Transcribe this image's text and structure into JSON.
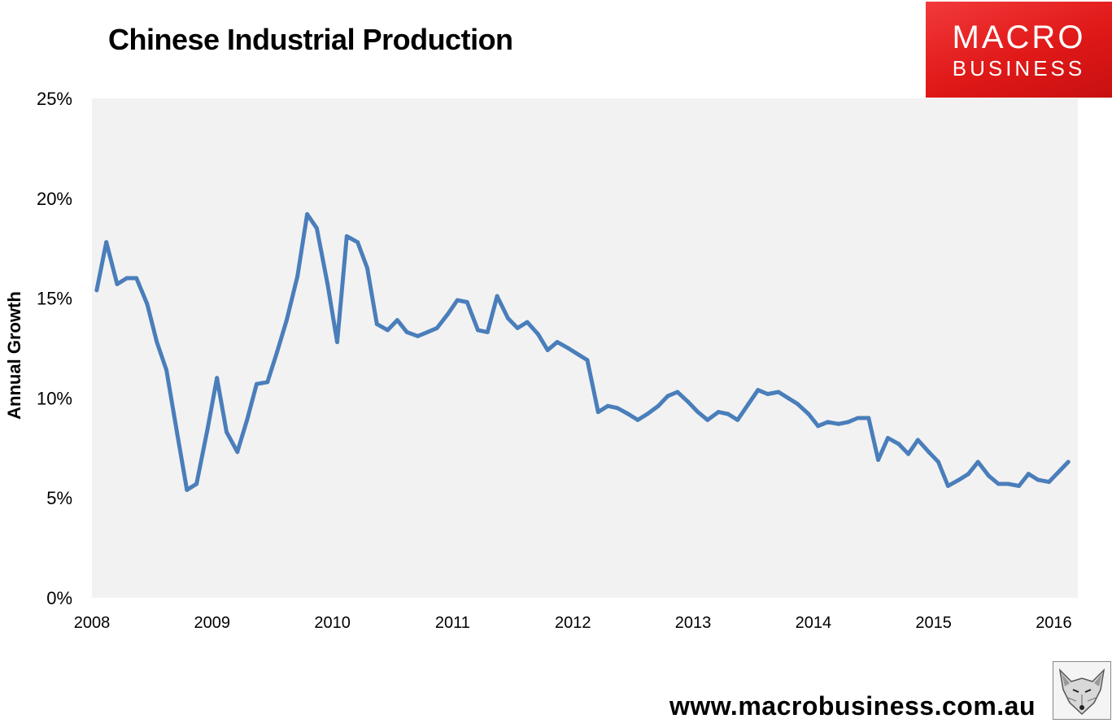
{
  "title": "Chinese Industrial Production",
  "brand": {
    "line1": "MACRO",
    "line2": "BUSINESS",
    "color": "#e4201f"
  },
  "footer": {
    "url": "www.macrobusiness.com.au",
    "icon": "fox-icon"
  },
  "chart_data": {
    "type": "line",
    "title": "Chinese Industrial Production",
    "xlabel": "",
    "ylabel": "Annual Growth",
    "xlim": [
      2008.0,
      2016.2
    ],
    "ylim": [
      0,
      25
    ],
    "y_ticks": [
      0,
      5,
      10,
      15,
      20,
      25
    ],
    "y_tick_labels": [
      "0%",
      "5%",
      "10%",
      "15%",
      "20%",
      "25%"
    ],
    "x_ticks": [
      2008,
      2009,
      2010,
      2011,
      2012,
      2013,
      2014,
      2015,
      2016
    ],
    "x_tick_labels": [
      "2008",
      "2009",
      "2010",
      "2011",
      "2012",
      "2013",
      "2014",
      "2015",
      "2016"
    ],
    "grid": false,
    "legend": "none",
    "plot_background": "#f2f2f2",
    "line_color": "#4a7ebb",
    "series": [
      {
        "x": [
          2008.04,
          2008.12,
          2008.21,
          2008.29,
          2008.37,
          2008.46,
          2008.54,
          2008.62,
          2008.71,
          2008.79,
          2008.87,
          2008.96,
          2009.04,
          2009.12,
          2009.21,
          2009.29,
          2009.37,
          2009.46,
          2009.54,
          2009.62,
          2009.71,
          2009.79,
          2009.87,
          2009.96,
          2010.04,
          2010.12,
          2010.21,
          2010.29,
          2010.37,
          2010.46,
          2010.54,
          2010.62,
          2010.71,
          2010.79,
          2010.87,
          2010.96,
          2011.04,
          2011.12,
          2011.21,
          2011.29,
          2011.37,
          2011.46,
          2011.54,
          2011.62,
          2011.71,
          2011.79,
          2011.87,
          2011.96,
          2012.04,
          2012.12,
          2012.21,
          2012.29,
          2012.37,
          2012.46,
          2012.54,
          2012.62,
          2012.71,
          2012.79,
          2012.87,
          2012.96,
          2013.04,
          2013.12,
          2013.21,
          2013.29,
          2013.37,
          2013.46,
          2013.54,
          2013.62,
          2013.71,
          2013.79,
          2013.87,
          2013.96,
          2014.04,
          2014.12,
          2014.21,
          2014.29,
          2014.37,
          2014.46,
          2014.54,
          2014.62,
          2014.71,
          2014.79,
          2014.87,
          2014.96,
          2015.04,
          2015.12,
          2015.21,
          2015.29,
          2015.37,
          2015.46,
          2015.54,
          2015.62,
          2015.71,
          2015.79,
          2015.87,
          2015.96,
          2016.04,
          2016.12
        ],
        "values": [
          15.4,
          17.8,
          15.7,
          16.0,
          16.0,
          14.7,
          12.8,
          11.4,
          8.2,
          5.4,
          5.7,
          8.4,
          11.0,
          8.3,
          7.3,
          8.9,
          10.7,
          10.8,
          12.3,
          13.9,
          16.1,
          19.2,
          18.5,
          15.7,
          12.8,
          18.1,
          17.8,
          16.5,
          13.7,
          13.4,
          13.9,
          13.3,
          13.1,
          13.3,
          13.5,
          14.2,
          14.9,
          14.8,
          13.4,
          13.3,
          15.1,
          14.0,
          13.5,
          13.8,
          13.2,
          12.4,
          12.8,
          12.5,
          12.2,
          11.9,
          9.3,
          9.6,
          9.5,
          9.2,
          8.9,
          9.2,
          9.6,
          10.1,
          10.3,
          9.8,
          9.3,
          8.9,
          9.3,
          9.2,
          8.9,
          9.7,
          10.4,
          10.2,
          10.3,
          10.0,
          9.7,
          9.2,
          8.6,
          8.8,
          8.7,
          8.8,
          9.0,
          9.0,
          6.9,
          8.0,
          7.7,
          7.2,
          7.9,
          7.3,
          6.8,
          5.6,
          5.9,
          6.2,
          6.8,
          6.1,
          5.7,
          5.7,
          5.6,
          6.2,
          5.9,
          5.8,
          6.3,
          6.8
        ]
      }
    ]
  }
}
